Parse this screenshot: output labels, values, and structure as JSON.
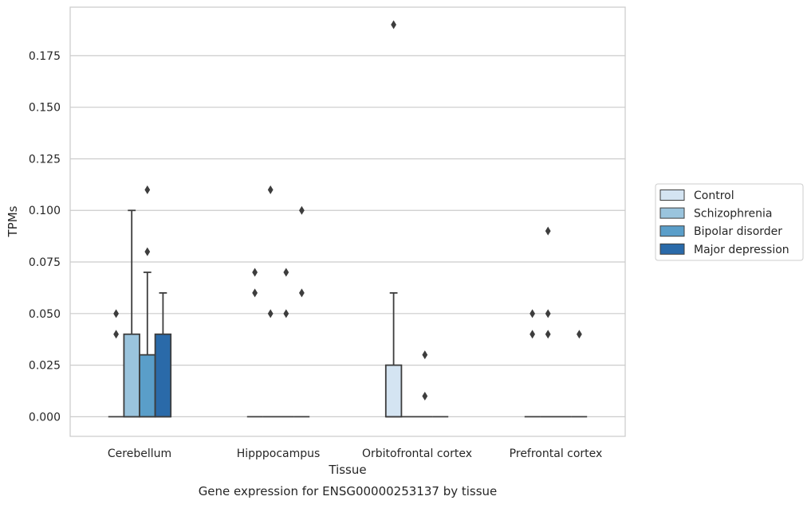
{
  "chart_data": {
    "type": "box",
    "title": "Gene expression for ENSG00000253137 by tissue",
    "xlabel": "Tissue",
    "ylabel": "TPMs",
    "categories": [
      "Cerebellum",
      "Hipppocampus",
      "Orbitofrontal cortex",
      "Prefrontal cortex"
    ],
    "ylim": [
      -0.0095,
      0.1985
    ],
    "yticks": [
      0.0,
      0.025,
      0.05,
      0.075,
      0.1,
      0.125,
      0.15,
      0.175
    ],
    "ytick_labels": [
      "0.000",
      "0.025",
      "0.050",
      "0.075",
      "0.100",
      "0.125",
      "0.150",
      "0.175"
    ],
    "grid": true,
    "legend_position": "right",
    "series": [
      {
        "name": "Control",
        "color": "#d4e4f2",
        "boxes": [
          {
            "q1": 0.0,
            "median": 0.0,
            "q3": 0.0,
            "whisker_low": 0.0,
            "whisker_high": 0.0,
            "outliers": [
              0.04,
              0.05
            ]
          },
          {
            "q1": 0.0,
            "median": 0.0,
            "q3": 0.0,
            "whisker_low": 0.0,
            "whisker_high": 0.0,
            "outliers": [
              0.06,
              0.07
            ]
          },
          {
            "q1": 0.0,
            "median": 0.0,
            "q3": 0.025,
            "whisker_low": 0.0,
            "whisker_high": 0.06,
            "outliers": [
              0.19
            ]
          },
          {
            "q1": 0.0,
            "median": 0.0,
            "q3": 0.0,
            "whisker_low": 0.0,
            "whisker_high": 0.0,
            "outliers": [
              0.04,
              0.05
            ]
          }
        ]
      },
      {
        "name": "Schizophrenia",
        "color": "#9ac4dd",
        "boxes": [
          {
            "q1": 0.0,
            "median": 0.0,
            "q3": 0.04,
            "whisker_low": 0.0,
            "whisker_high": 0.1,
            "outliers": []
          },
          {
            "q1": 0.0,
            "median": 0.0,
            "q3": 0.0,
            "whisker_low": 0.0,
            "whisker_high": 0.0,
            "outliers": [
              0.05,
              0.11
            ]
          },
          {
            "q1": 0.0,
            "median": 0.0,
            "q3": 0.0,
            "whisker_low": 0.0,
            "whisker_high": 0.0,
            "outliers": []
          },
          {
            "q1": 0.0,
            "median": 0.0,
            "q3": 0.0,
            "whisker_low": 0.0,
            "whisker_high": 0.0,
            "outliers": [
              0.04,
              0.05,
              0.09
            ]
          }
        ]
      },
      {
        "name": "Bipolar disorder",
        "color": "#5a9ec9",
        "boxes": [
          {
            "q1": 0.0,
            "median": 0.0,
            "q3": 0.03,
            "whisker_low": 0.0,
            "whisker_high": 0.07,
            "outliers": [
              0.08,
              0.11
            ]
          },
          {
            "q1": 0.0,
            "median": 0.0,
            "q3": 0.0,
            "whisker_low": 0.0,
            "whisker_high": 0.0,
            "outliers": [
              0.05,
              0.07
            ]
          },
          {
            "q1": 0.0,
            "median": 0.0,
            "q3": 0.0,
            "whisker_low": 0.0,
            "whisker_high": 0.0,
            "outliers": [
              0.01,
              0.03
            ]
          },
          {
            "q1": 0.0,
            "median": 0.0,
            "q3": 0.0,
            "whisker_low": 0.0,
            "whisker_high": 0.0,
            "outliers": []
          }
        ]
      },
      {
        "name": "Major depression",
        "color": "#2a6aa9",
        "boxes": [
          {
            "q1": 0.0,
            "median": 0.0,
            "q3": 0.04,
            "whisker_low": 0.0,
            "whisker_high": 0.06,
            "outliers": []
          },
          {
            "q1": 0.0,
            "median": 0.0,
            "q3": 0.0,
            "whisker_low": 0.0,
            "whisker_high": 0.0,
            "outliers": [
              0.06,
              0.1
            ]
          },
          {
            "q1": 0.0,
            "median": 0.0,
            "q3": 0.0,
            "whisker_low": 0.0,
            "whisker_high": 0.0,
            "outliers": []
          },
          {
            "q1": 0.0,
            "median": 0.0,
            "q3": 0.0,
            "whisker_low": 0.0,
            "whisker_high": 0.0,
            "outliers": [
              0.04
            ]
          }
        ]
      }
    ]
  }
}
